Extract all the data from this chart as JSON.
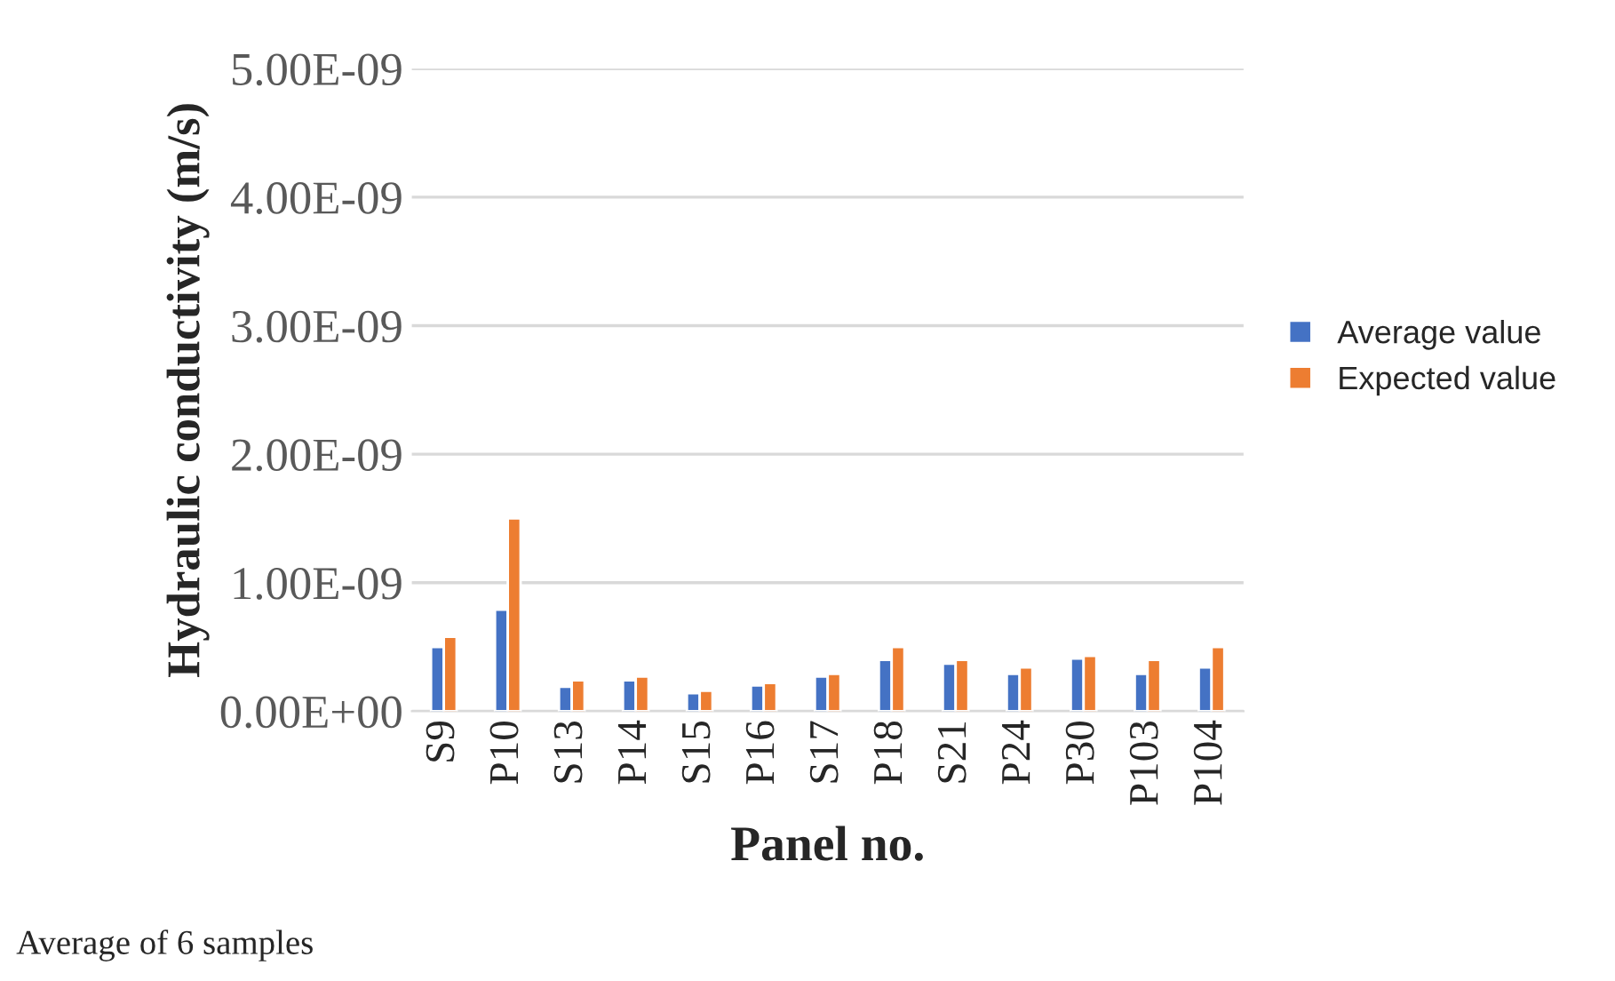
{
  "chart_data": {
    "type": "bar",
    "xlabel": "Panel no.",
    "ylabel": "Hydraulic conductivity (m/s)",
    "categories": [
      "S9",
      "P10",
      "S13",
      "P14",
      "S15",
      "P16",
      "S17",
      "P18",
      "S21",
      "P24",
      "P30",
      "P103",
      "P104"
    ],
    "series": [
      {
        "name": "Average value",
        "color": "#4472c4",
        "values": [
          5e-10,
          7.9e-10,
          1.9e-10,
          2.4e-10,
          1.4e-10,
          2e-10,
          2.7e-10,
          4e-10,
          3.7e-10,
          2.9e-10,
          4.1e-10,
          2.9e-10,
          3.4e-10
        ]
      },
      {
        "name": "Expected value",
        "color": "#ed7d31",
        "values": [
          5.8e-10,
          1.5e-09,
          2.4e-10,
          2.7e-10,
          1.6e-10,
          2.2e-10,
          2.9e-10,
          5e-10,
          4e-10,
          3.4e-10,
          4.3e-10,
          4e-10,
          5e-10
        ]
      }
    ],
    "ylim": [
      0,
      5e-09
    ],
    "yticks": [
      {
        "value": 0,
        "label": "0.00E+00"
      },
      {
        "value": 1e-09,
        "label": "1.00E-09"
      },
      {
        "value": 2e-09,
        "label": "2.00E-09"
      },
      {
        "value": 3e-09,
        "label": "3.00E-09"
      },
      {
        "value": 4e-09,
        "label": "4.00E-09"
      },
      {
        "value": 5e-09,
        "label": "5.00E-09"
      }
    ],
    "grid": "y",
    "legend": "right",
    "annotations": [
      "Average of 6 samples"
    ]
  }
}
